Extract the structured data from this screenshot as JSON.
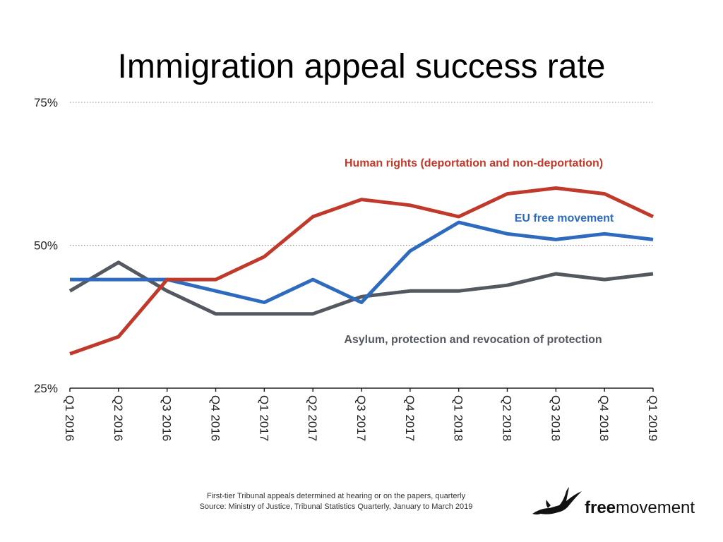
{
  "chart_data": {
    "type": "line",
    "title": "Immigration appeal success rate",
    "categories": [
      "Q1 2016",
      "Q2 2016",
      "Q3 2016",
      "Q4 2016",
      "Q1 2017",
      "Q2 2017",
      "Q3 2017",
      "Q4 2017",
      "Q1 2018",
      "Q2 2018",
      "Q3 2018",
      "Q4 2018",
      "Q1 2019"
    ],
    "y_ticks": [
      {
        "value": 25,
        "label": "25%"
      },
      {
        "value": 50,
        "label": "50%"
      },
      {
        "value": 75,
        "label": "75%"
      }
    ],
    "ylim": [
      25,
      75
    ],
    "y_unit": "%",
    "grid": "dotted horizontal at 50% and 75%",
    "series": [
      {
        "name": "Human rights (deportation and non-deportation)",
        "color": "#C0392B",
        "values": [
          31,
          34,
          44,
          44,
          48,
          55,
          58,
          57,
          55,
          59,
          60,
          59,
          55
        ]
      },
      {
        "name": "EU free movement",
        "color": "#2E6BBE",
        "values": [
          44,
          44,
          44,
          42,
          40,
          44,
          40,
          49,
          54,
          52,
          51,
          52,
          51
        ]
      },
      {
        "name": "Asylum, protection and revocation of protection",
        "color": "#545860",
        "values": [
          42,
          47,
          42,
          38,
          38,
          38,
          41,
          42,
          42,
          43,
          45,
          44,
          45
        ]
      }
    ]
  },
  "footnote": {
    "line1": "First-tier Tribunal appeals determined at hearing or on the papers, quarterly",
    "line2": "Source: Ministry of Justice, Tribunal Statistics Quarterly, January to March 2019"
  },
  "brand": {
    "bold": "free",
    "regular": "movement",
    "icon": "crane-bird-icon"
  }
}
